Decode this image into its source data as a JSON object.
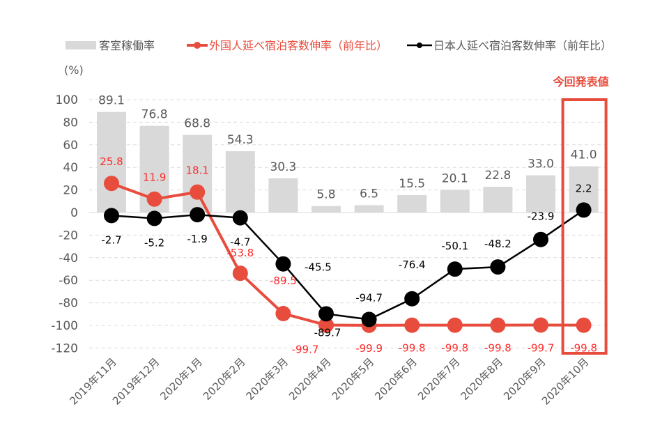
{
  "chart_data": {
    "type": "bar+line",
    "y_unit_label": "(%)",
    "ylim": [
      -120,
      100
    ],
    "yticks": [
      100,
      80,
      60,
      40,
      20,
      0,
      -20,
      -40,
      -60,
      -80,
      -100,
      -120
    ],
    "categories": [
      "2019年11月",
      "2019年12月",
      "2020年1月",
      "2020年2月",
      "2020年3月",
      "2020年4月",
      "2020年5月",
      "2020年6月",
      "2020年7月",
      "2020年8月",
      "2020年9月",
      "2020年10月"
    ],
    "series": [
      {
        "name": "客室稼働率",
        "kind": "bar",
        "color": "#d9d9d9",
        "label_color": "#595959",
        "values": [
          89.1,
          76.8,
          68.8,
          54.3,
          30.3,
          5.8,
          6.5,
          15.5,
          20.1,
          22.8,
          33.0,
          41.0
        ]
      },
      {
        "name": "外国人延べ宿泊客数伸率（前年比）",
        "kind": "line",
        "color": "#e84c3d",
        "label_color": "#ff2a2a",
        "values": [
          25.8,
          11.9,
          18.1,
          -53.8,
          -89.5,
          -99.7,
          -99.9,
          -99.8,
          -99.8,
          -99.8,
          -99.7,
          -99.8
        ]
      },
      {
        "name": "日本人延べ宿泊客数伸率（前年比）",
        "kind": "line",
        "color": "#000000",
        "label_color": "#000000",
        "values": [
          -2.7,
          -5.2,
          -1.9,
          -4.7,
          -45.5,
          -89.7,
          -94.7,
          -76.4,
          -50.1,
          -48.2,
          -23.9,
          2.2
        ]
      }
    ],
    "highlight": {
      "label": "今回発表値",
      "category": "2020年10月",
      "color": "#e84c3d"
    },
    "legend": "top",
    "grid": true
  }
}
